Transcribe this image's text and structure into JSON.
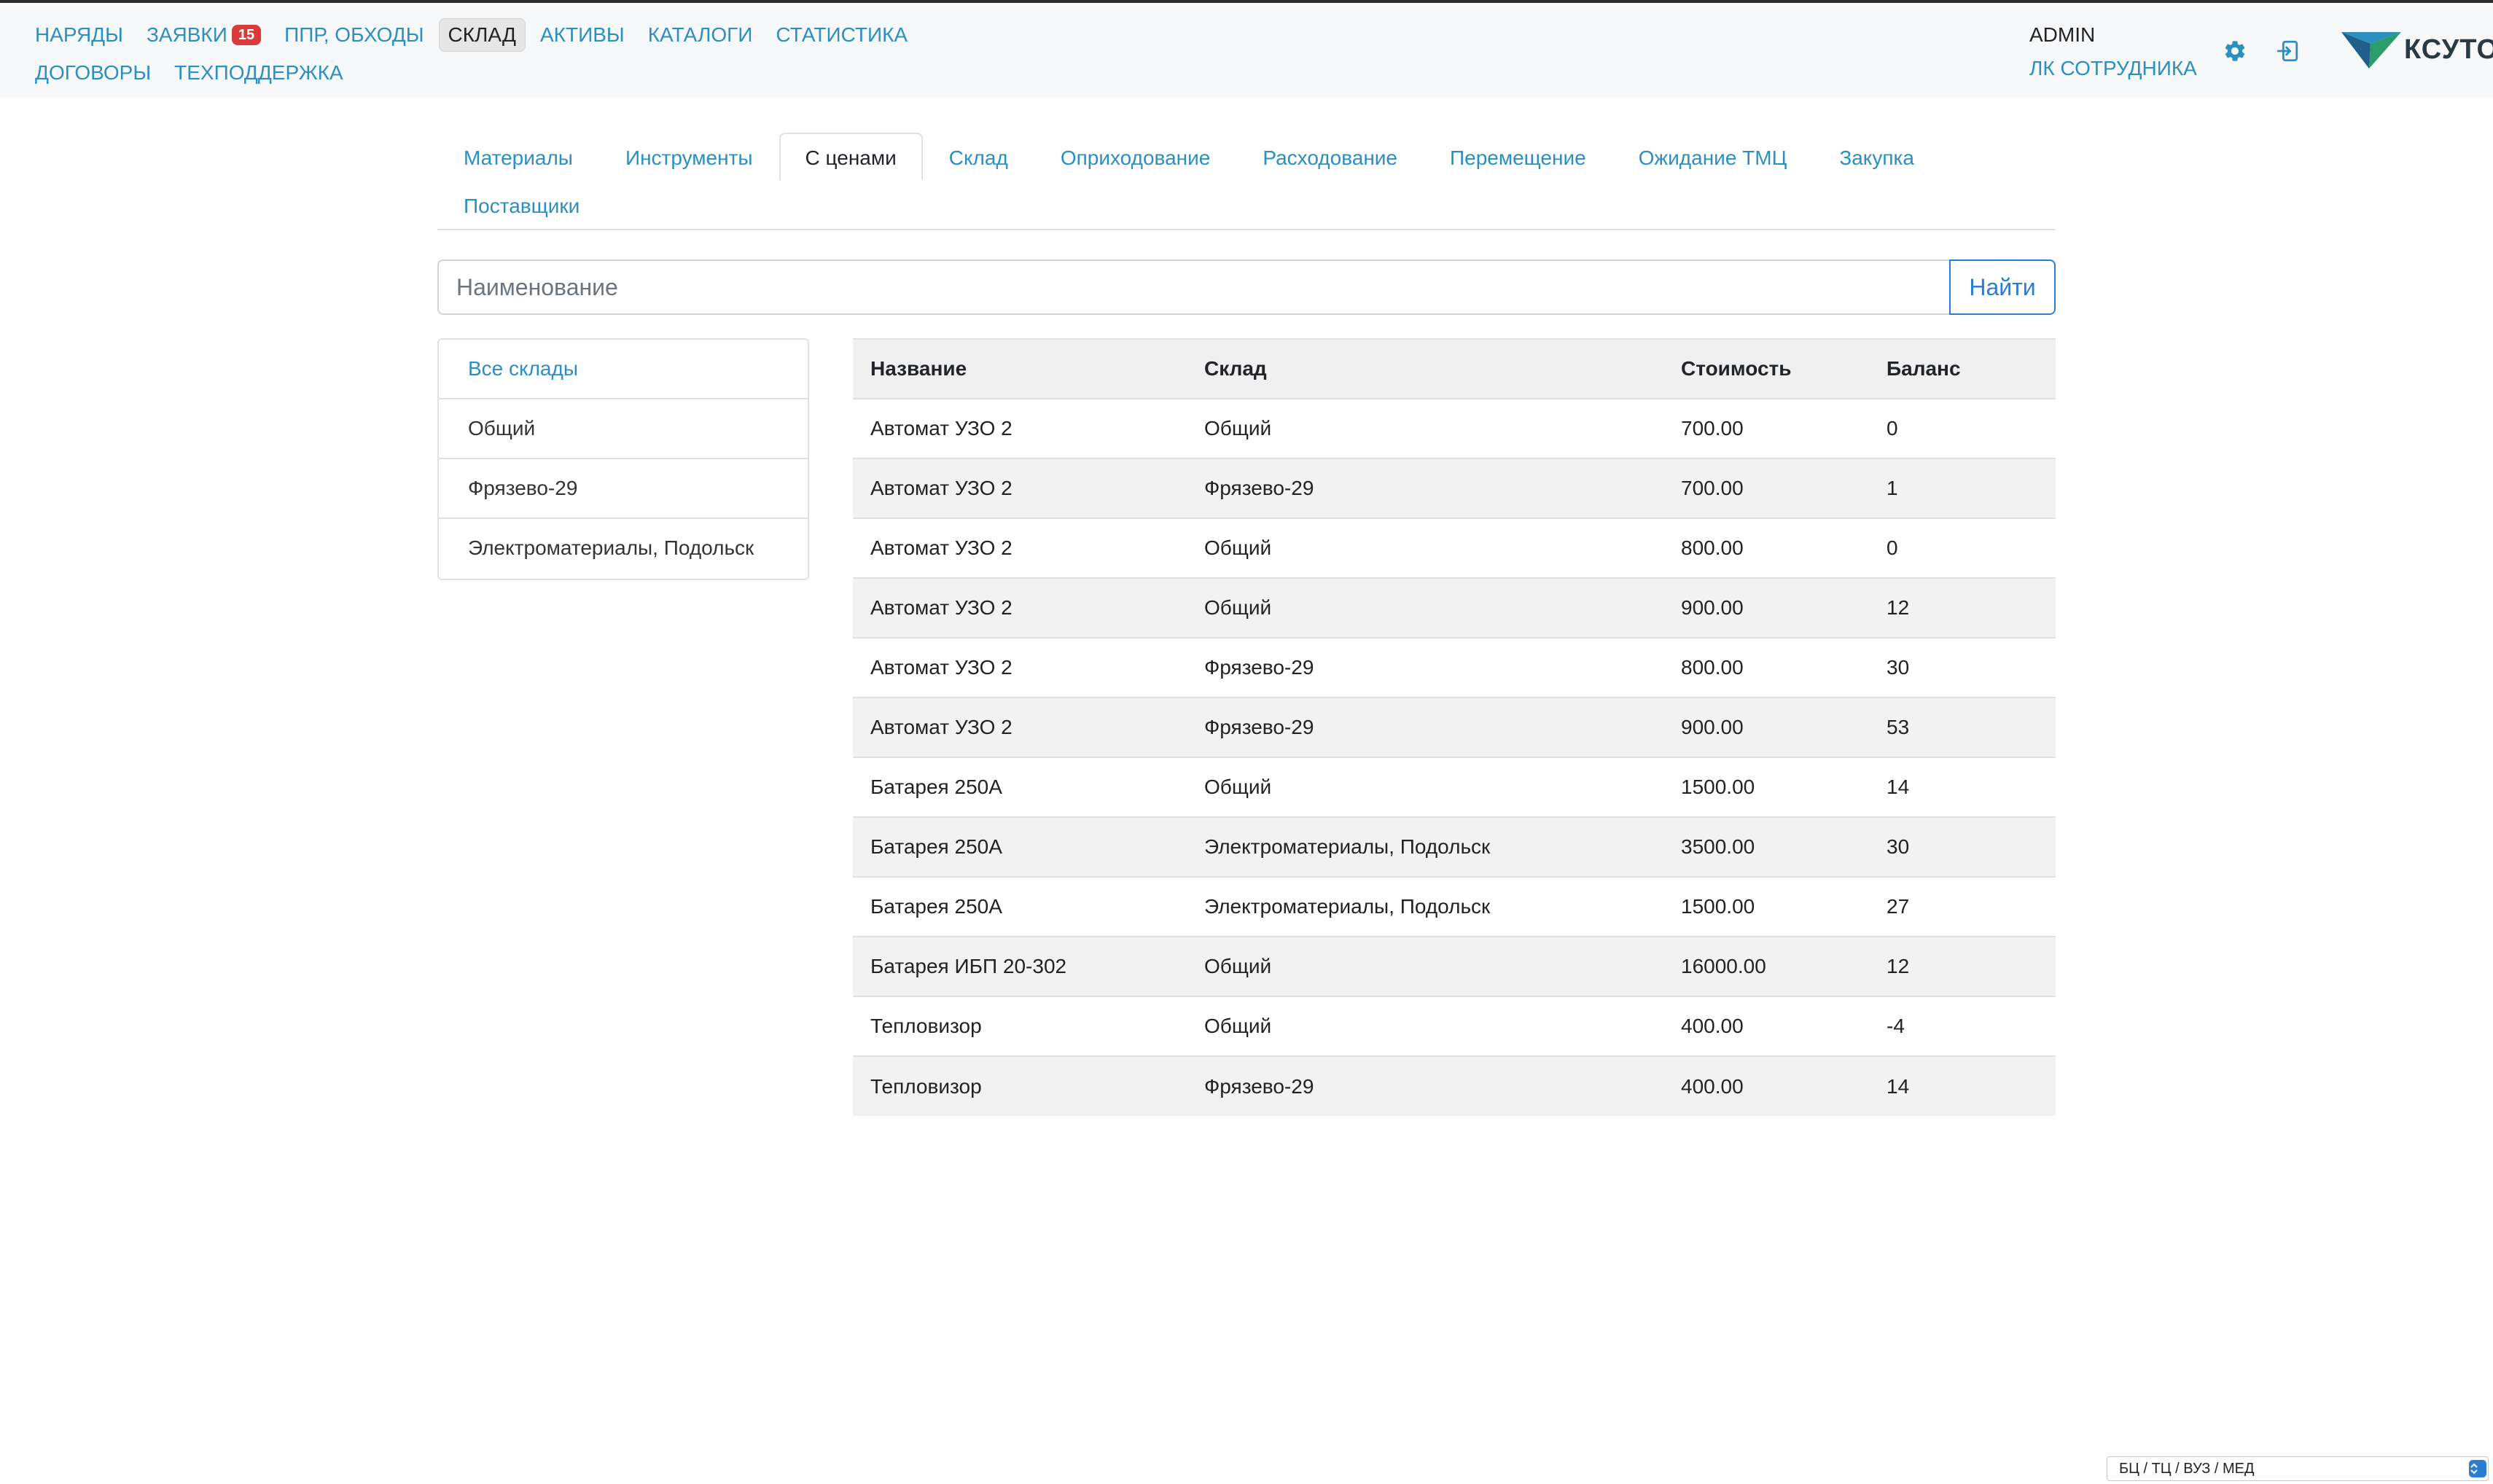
{
  "header": {
    "nav_row1": [
      {
        "label": "НАРЯДЫ",
        "active": false
      },
      {
        "label": "ЗАЯВКИ",
        "active": false,
        "badge": "15"
      },
      {
        "label": "ППР, ОБХОДЫ",
        "active": false
      },
      {
        "label": "СКЛАД",
        "active": true
      },
      {
        "label": "АКТИВЫ",
        "active": false
      },
      {
        "label": "КАТАЛОГИ",
        "active": false
      },
      {
        "label": "СТАТИСТИКА",
        "active": false
      }
    ],
    "nav_row2": [
      {
        "label": "ДОГОВОРЫ"
      },
      {
        "label": "ТЕХПОДДЕРЖКА"
      }
    ],
    "user_name": "ADMIN",
    "employee_link": "ЛК СОТРУДНИКА",
    "settings_icon": "gear-icon",
    "logout_icon": "logout-icon",
    "logo_text": "КСУТО",
    "accent_color": "#2b8fc0",
    "badge_color": "#d93a3a"
  },
  "tabs": [
    {
      "label": "Материалы",
      "active": false
    },
    {
      "label": "Инструменты",
      "active": false
    },
    {
      "label": "С ценами",
      "active": true
    },
    {
      "label": "Склад",
      "active": false
    },
    {
      "label": "Оприходование",
      "active": false
    },
    {
      "label": "Расходование",
      "active": false
    },
    {
      "label": "Перемещение",
      "active": false
    },
    {
      "label": "Ожидание ТМЦ",
      "active": false
    },
    {
      "label": "Закупка",
      "active": false
    },
    {
      "label": "Поставщики",
      "active": false
    }
  ],
  "search": {
    "placeholder": "Наименование",
    "value": "",
    "button_label": "Найти"
  },
  "warehouses": [
    {
      "label": "Все склады",
      "active": true
    },
    {
      "label": "Общий",
      "active": false
    },
    {
      "label": "Фрязево-29",
      "active": false
    },
    {
      "label": "Электроматериалы, Подольск",
      "active": false
    }
  ],
  "table": {
    "columns": [
      "Название",
      "Склад",
      "Стоимость",
      "Баланс"
    ],
    "rows": [
      [
        "Автомат УЗО 2",
        "Общий",
        "700.00",
        "0"
      ],
      [
        "Автомат УЗО 2",
        "Фрязево-29",
        "700.00",
        "1"
      ],
      [
        "Автомат УЗО 2",
        "Общий",
        "800.00",
        "0"
      ],
      [
        "Автомат УЗО 2",
        "Общий",
        "900.00",
        "12"
      ],
      [
        "Автомат УЗО 2",
        "Фрязево-29",
        "800.00",
        "30"
      ],
      [
        "Автомат УЗО 2",
        "Фрязево-29",
        "900.00",
        "53"
      ],
      [
        "Батарея 250А",
        "Общий",
        "1500.00",
        "14"
      ],
      [
        "Батарея 250А",
        "Электроматериалы, Подольск",
        "3500.00",
        "30"
      ],
      [
        "Батарея 250А",
        "Электроматериалы, Подольск",
        "1500.00",
        "27"
      ],
      [
        "Батарея ИБП 20-302",
        "Общий",
        "16000.00",
        "12"
      ],
      [
        "Тепловизор",
        "Общий",
        "400.00",
        "-4"
      ],
      [
        "Тепловизор",
        "Фрязево-29",
        "400.00",
        "14"
      ]
    ]
  },
  "footer": {
    "selector_value": "БЦ / ТЦ / ВУЗ / МЕД"
  }
}
